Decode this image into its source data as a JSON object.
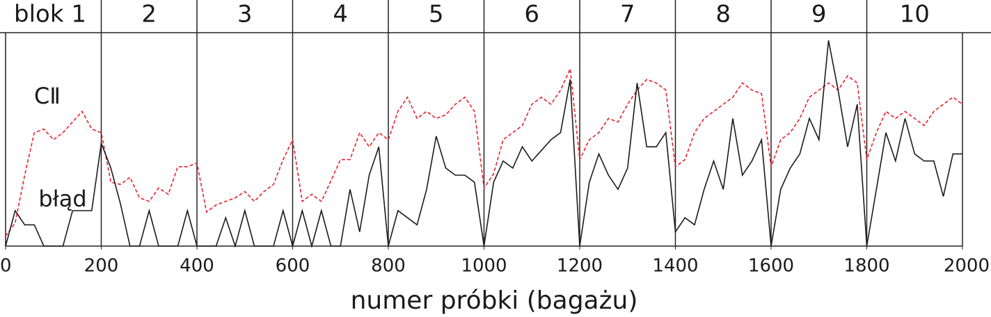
{
  "chart_data": {
    "type": "line",
    "xlabel": "numer próbki (bagażu)",
    "blocks": [
      "blok 1",
      "2",
      "3",
      "4",
      "5",
      "6",
      "7",
      "8",
      "9",
      "10"
    ],
    "block_edges": [
      0,
      200,
      400,
      600,
      800,
      1000,
      1200,
      1400,
      1600,
      1800,
      2000
    ],
    "annotations": [
      "CⅡ",
      "błąd"
    ],
    "xlim": [
      0,
      2000
    ],
    "xticks": [
      0,
      200,
      400,
      600,
      800,
      1000,
      1200,
      1400,
      1600,
      1800,
      2000
    ],
    "ylim": [
      0,
      3
    ],
    "x": [
      0,
      20,
      40,
      60,
      80,
      100,
      120,
      140,
      160,
      180,
      200,
      220,
      240,
      260,
      280,
      300,
      320,
      340,
      360,
      380,
      400,
      420,
      440,
      460,
      480,
      500,
      520,
      540,
      560,
      580,
      600,
      620,
      640,
      660,
      680,
      700,
      720,
      740,
      760,
      780,
      800,
      820,
      840,
      860,
      880,
      900,
      920,
      940,
      960,
      980,
      1000,
      1020,
      1040,
      1060,
      1080,
      1100,
      1120,
      1140,
      1160,
      1180,
      1200,
      1220,
      1240,
      1260,
      1280,
      1300,
      1320,
      1340,
      1360,
      1380,
      1400,
      1420,
      1440,
      1460,
      1480,
      1500,
      1520,
      1540,
      1560,
      1580,
      1600,
      1620,
      1640,
      1660,
      1680,
      1700,
      1720,
      1740,
      1760,
      1780,
      1800,
      1820,
      1840,
      1860,
      1880,
      1900,
      1920,
      1940,
      1960,
      1980,
      2000
    ],
    "series": [
      {
        "name": "CⅡ",
        "color": "#e8202a",
        "dash": true,
        "values": [
          0.14,
          0.33,
          1.0,
          1.6,
          1.65,
          1.5,
          1.6,
          1.75,
          1.9,
          1.65,
          1.6,
          0.9,
          0.87,
          0.97,
          0.68,
          0.63,
          0.82,
          0.73,
          1.12,
          1.12,
          1.17,
          0.48,
          0.58,
          0.63,
          0.68,
          0.77,
          0.63,
          0.77,
          0.87,
          1.22,
          1.5,
          0.63,
          0.73,
          0.63,
          0.92,
          1.22,
          1.22,
          1.6,
          1.4,
          1.6,
          1.5,
          1.9,
          2.1,
          1.8,
          1.9,
          1.8,
          1.85,
          2.0,
          2.1,
          1.9,
          0.82,
          1.02,
          1.5,
          1.6,
          1.7,
          2.0,
          2.1,
          2.0,
          2.2,
          2.5,
          1.22,
          1.5,
          1.6,
          1.8,
          1.75,
          2.0,
          2.2,
          2.35,
          2.3,
          2.2,
          1.12,
          1.22,
          1.6,
          1.8,
          1.9,
          2.0,
          2.1,
          2.3,
          2.2,
          2.15,
          1.12,
          1.5,
          1.6,
          1.8,
          2.1,
          2.2,
          2.3,
          2.2,
          2.4,
          2.3,
          1.22,
          1.6,
          1.9,
          1.8,
          1.9,
          1.8,
          1.7,
          1.9,
          2.0,
          2.1,
          2.0
        ]
      },
      {
        "name": "błąd",
        "color": "#1a1a1a",
        "dash": false,
        "values": [
          0,
          0.5,
          0.3,
          0.3,
          0,
          0,
          0,
          0.5,
          0.5,
          0.5,
          1.45,
          1.1,
          0.6,
          0,
          0,
          0.5,
          0,
          0,
          0,
          0.5,
          0,
          0,
          0,
          0.4,
          0,
          0.5,
          0,
          0,
          0,
          0.5,
          0,
          0.5,
          0,
          0.5,
          0,
          0,
          0.8,
          0.2,
          1.0,
          1.4,
          0,
          0.5,
          0.4,
          0.3,
          0.8,
          1.55,
          1.1,
          1.0,
          1.0,
          0.9,
          0,
          0.9,
          1.2,
          1.1,
          1.4,
          1.2,
          1.35,
          1.5,
          1.6,
          2.35,
          0,
          0.9,
          1.3,
          1.0,
          0.8,
          1.1,
          2.3,
          1.4,
          1.4,
          1.6,
          0.2,
          0.4,
          0.3,
          0.8,
          1.2,
          0.8,
          1.8,
          1.0,
          1.2,
          1.5,
          0,
          0.8,
          1.1,
          1.3,
          1.8,
          1.5,
          2.9,
          2.2,
          1.4,
          2.0,
          0,
          0.8,
          1.6,
          1.2,
          1.8,
          1.3,
          1.2,
          1.2,
          0.7,
          1.3,
          1.3
        ]
      }
    ]
  }
}
